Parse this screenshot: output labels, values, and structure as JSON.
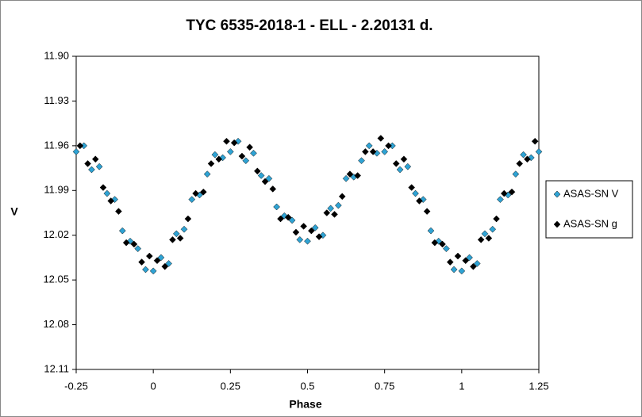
{
  "chart_data": {
    "type": "scatter",
    "title": "TYC 6535-2018-1  - ELL - 2.20131 d.",
    "x_label": "Phase",
    "y_label": "V",
    "xlim": [
      -0.25,
      1.25
    ],
    "xticks": [
      -0.25,
      0,
      0.25,
      0.5,
      0.75,
      1,
      1.25
    ],
    "ylim": [
      11.9,
      12.11
    ],
    "yticks": [
      {
        "value": 11.9,
        "label": "11.90"
      },
      11.93,
      11.96,
      11.99,
      12.02,
      12.05,
      12.08,
      12.11
    ],
    "y_inverted": true,
    "legend": "right",
    "series": [
      {
        "name": "ASAS-SN V",
        "color": "#2fa3d4",
        "x": [
          -0.25,
          -0.225,
          -0.2,
          -0.175,
          -0.15,
          -0.125,
          -0.1,
          -0.075,
          -0.05,
          -0.025,
          0,
          0.025,
          0.05,
          0.075,
          0.1,
          0.125,
          0.15,
          0.175,
          0.2,
          0.225,
          0.25,
          0.275,
          0.3,
          0.325,
          0.35,
          0.375,
          0.4,
          0.425,
          0.45,
          0.475,
          0.5,
          0.525,
          0.55,
          0.575,
          0.6,
          0.625,
          0.65,
          0.675,
          0.7,
          0.725,
          0.75,
          0.775,
          0.8,
          0.825,
          0.85,
          0.875,
          0.9,
          0.925,
          0.95,
          0.975,
          1,
          1.025,
          1.05,
          1.075,
          1.1,
          1.125,
          1.15,
          1.175,
          1.2,
          1.225,
          1.25
        ],
        "values": [
          11.964,
          11.96,
          11.976,
          11.974,
          11.992,
          11.996,
          12.017,
          12.024,
          12.029,
          12.043,
          12.044,
          12.035,
          12.039,
          12.019,
          12.016,
          11.996,
          11.993,
          11.979,
          11.966,
          11.968,
          11.964,
          11.957,
          11.97,
          11.965,
          11.98,
          11.982,
          12.001,
          12.007,
          12.01,
          12.023,
          12.024,
          12.015,
          12.02,
          12.002,
          12.0,
          11.982,
          11.981,
          11.97,
          11.96,
          11.965,
          11.964,
          11.96,
          11.976,
          11.974,
          11.992,
          11.996,
          12.017,
          12.024,
          12.029,
          12.043,
          12.044,
          12.035,
          12.039,
          12.019,
          12.016,
          11.996,
          11.993,
          11.979,
          11.966,
          11.968,
          11.964
        ]
      },
      {
        "name": "ASAS-SN g",
        "color": "#000000",
        "x": [
          -0.2375,
          -0.2125,
          -0.1875,
          -0.1625,
          -0.1375,
          -0.1125,
          -0.0875,
          -0.0625,
          -0.0375,
          -0.0125,
          0.0125,
          0.0375,
          0.0625,
          0.0875,
          0.1125,
          0.1375,
          0.1625,
          0.1875,
          0.2125,
          0.2375,
          0.2625,
          0.2875,
          0.3125,
          0.3375,
          0.3625,
          0.3875,
          0.4125,
          0.4375,
          0.4625,
          0.4875,
          0.5125,
          0.5375,
          0.5625,
          0.5875,
          0.6125,
          0.6375,
          0.6625,
          0.6875,
          0.7125,
          0.7375,
          0.7625,
          0.7875,
          0.8125,
          0.8375,
          0.8625,
          0.8875,
          0.9125,
          0.9375,
          0.9625,
          0.9875,
          1.0125,
          1.0375,
          1.0625,
          1.0875,
          1.1125,
          1.1375,
          1.1625,
          1.1875,
          1.2125,
          1.2375
        ],
        "values": [
          11.96,
          11.972,
          11.969,
          11.988,
          11.997,
          12.004,
          12.025,
          12.026,
          12.038,
          12.034,
          12.037,
          12.041,
          12.023,
          12.022,
          12.009,
          11.992,
          11.991,
          11.972,
          11.969,
          11.957,
          11.958,
          11.967,
          11.961,
          11.977,
          11.984,
          11.989,
          12.009,
          12.008,
          12.018,
          12.014,
          12.017,
          12.021,
          12.005,
          12.006,
          11.994,
          11.979,
          11.98,
          11.964,
          11.964,
          11.955,
          11.96,
          11.972,
          11.969,
          11.988,
          11.997,
          12.004,
          12.025,
          12.026,
          12.038,
          12.034,
          12.037,
          12.041,
          12.023,
          12.022,
          12.009,
          11.992,
          11.991,
          11.972,
          11.969,
          11.957
        ]
      }
    ]
  }
}
